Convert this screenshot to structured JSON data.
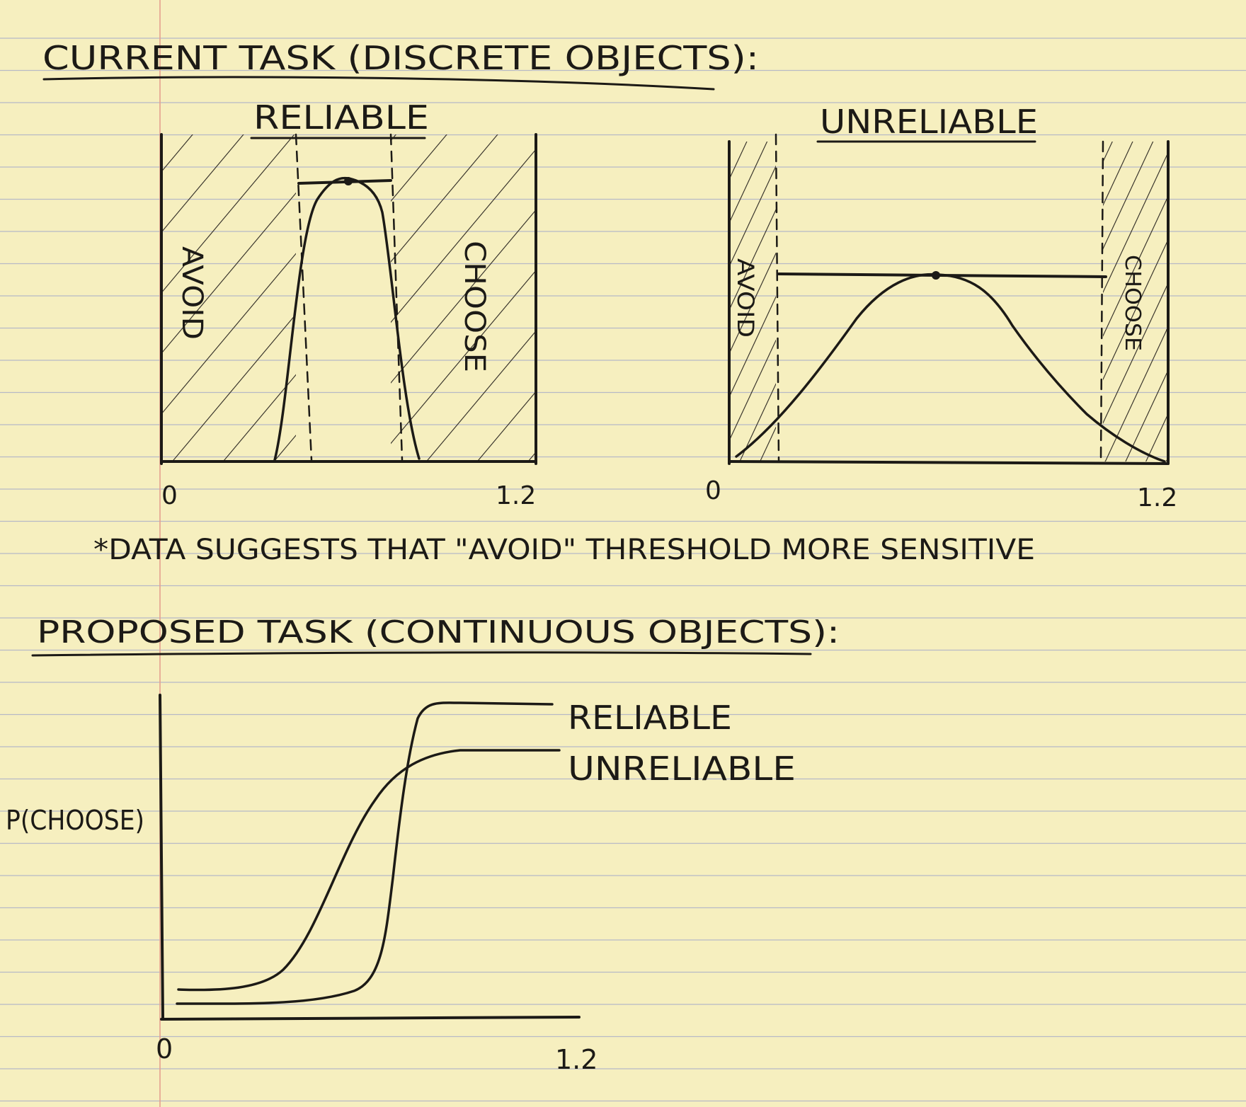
{
  "headings": {
    "current_task": "CURRENT TASK (DISCRETE OBJECTS):",
    "proposed_task": "PROPOSED TASK (CONTINUOUS OBJECTS):"
  },
  "note": "*DATA SUGGESTS THAT \"AVOID\" THRESHOLD MORE SENSITIVE",
  "panels": {
    "reliable": {
      "title": "RELIABLE",
      "avoid_label": "AVOID",
      "choose_label": "CHOOSE",
      "x_min_label": "0",
      "x_max_label": "1.2"
    },
    "unreliable": {
      "title": "UNRELIABLE",
      "avoid_label": "AVOID",
      "choose_label": "CHOOSE",
      "x_min_label": "0",
      "x_max_label": "1.2"
    }
  },
  "proposed_chart": {
    "ylabel": "P(CHOOSE)",
    "x_min_label": "0",
    "x_max_label": "1.2",
    "series_labels": {
      "reliable": "RELIABLE",
      "unreliable": "UNRELIABLE"
    }
  },
  "colors": {
    "paper": "#f6efbf",
    "ink": "#1c1a16",
    "rule_line": "#b7b9c6",
    "margin_line": "#e4a08f"
  }
}
